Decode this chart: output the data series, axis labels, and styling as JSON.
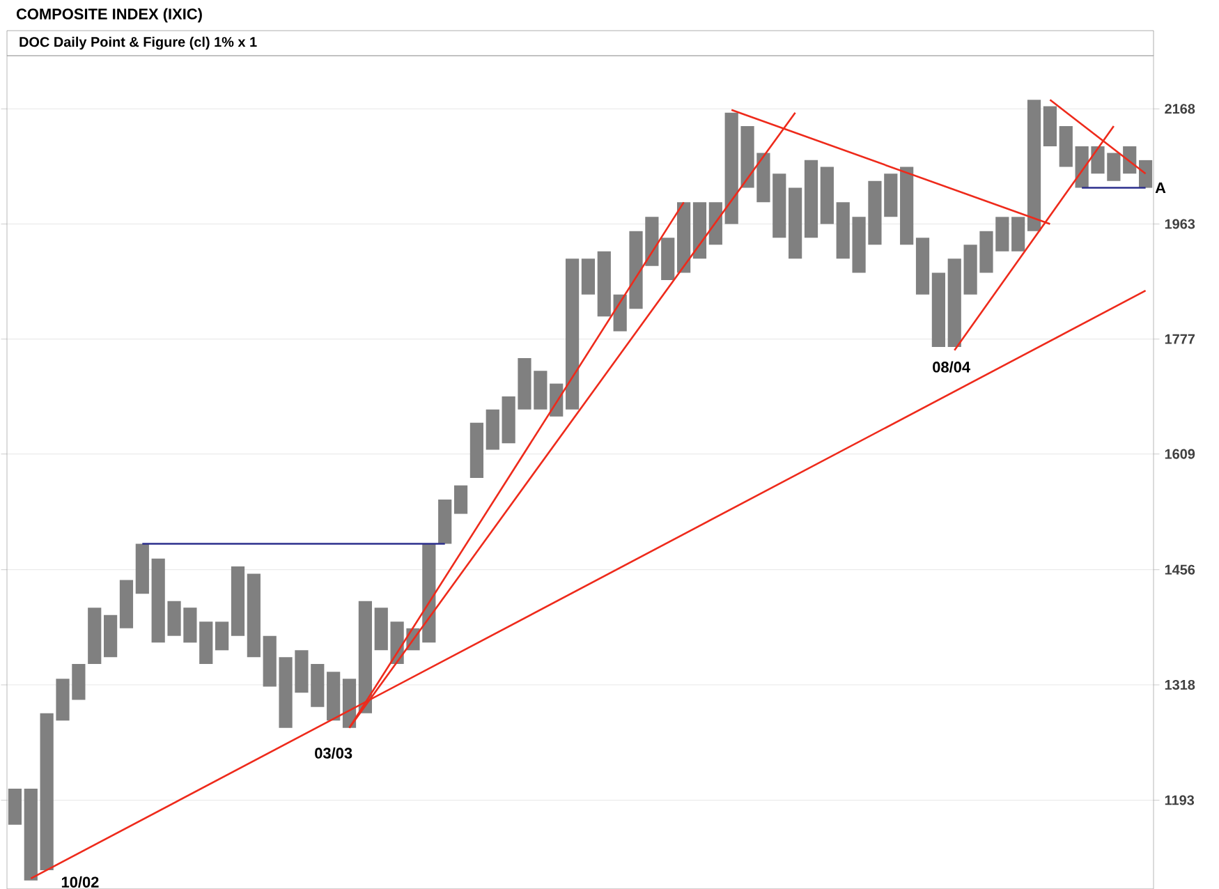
{
  "chart_data": {
    "type": "bar",
    "title": "COMPOSITE INDEX (IXIC)",
    "subtitle": "DOC Daily Point & Figure (cl) 1% x 1",
    "categories": [
      null,
      null,
      null,
      null,
      null,
      null,
      null,
      null,
      null,
      null,
      null,
      null,
      null,
      null,
      null,
      null,
      null,
      null,
      null,
      null,
      null,
      null,
      null,
      null,
      null,
      null,
      null,
      null,
      null,
      null,
      null,
      null,
      null,
      null,
      null,
      null,
      null,
      null,
      null,
      null,
      null,
      null,
      null,
      null,
      null,
      null,
      null,
      null,
      null,
      null,
      null,
      null,
      null,
      null,
      null,
      null,
      null,
      null,
      null,
      null,
      null,
      null,
      null,
      null,
      null,
      null,
      null,
      null,
      null,
      null,
      null,
      null
    ],
    "base": [
      1168,
      1113,
      1123,
      1278,
      1301,
      1342,
      1350,
      1384,
      1426,
      1367,
      1375,
      1367,
      1342,
      1358,
      1375,
      1350,
      1316,
      1270,
      1309,
      1293,
      1278,
      1270,
      1286,
      1358,
      1342,
      1358,
      1367,
      1489,
      1528,
      1576,
      1615,
      1624,
      1672,
      1672,
      1662,
      1672,
      1847,
      1812,
      1789,
      1824,
      1893,
      1870,
      1882,
      1905,
      1928,
      1963,
      2025,
      2000,
      1940,
      1905,
      1940,
      1963,
      1905,
      1882,
      1928,
      1975,
      1928,
      1847,
      1765,
      1765,
      1847,
      1882,
      1917,
      1917,
      1951,
      2099,
      2062,
      2025,
      2050,
      2037,
      2050,
      2025
    ],
    "values": [
      37,
      92,
      163,
      47,
      41,
      67,
      50,
      59,
      63,
      103,
      42,
      42,
      50,
      34,
      85,
      101,
      59,
      80,
      49,
      49,
      55,
      55,
      131,
      51,
      50,
      26,
      122,
      58,
      38,
      77,
      57,
      67,
      76,
      57,
      48,
      233,
      58,
      105,
      58,
      127,
      82,
      70,
      118,
      95,
      72,
      198,
      111,
      87,
      110,
      120,
      134,
      99,
      95,
      93,
      109,
      75,
      134,
      93,
      117,
      140,
      81,
      69,
      58,
      58,
      234,
      74,
      74,
      74,
      49,
      50,
      49,
      49
    ],
    "color": "#808080",
    "series": [
      {
        "type": "line",
        "color": "#ee2a1b",
        "values": [
          null,
          1115,
          null,
          null,
          null,
          null,
          null,
          null,
          null,
          null,
          null,
          null,
          null,
          null,
          null,
          null,
          null,
          null,
          null,
          null,
          null,
          null,
          null,
          null,
          null,
          null,
          null,
          null,
          null,
          null,
          null,
          null,
          null,
          null,
          null,
          null,
          null,
          null,
          null,
          null,
          null,
          null,
          null,
          null,
          null,
          null,
          null,
          null,
          null,
          null,
          null,
          null,
          null,
          null,
          null,
          null,
          null,
          null,
          null,
          null,
          null,
          null,
          null,
          null,
          null,
          null,
          null,
          null,
          null,
          null,
          null,
          1853
        ]
      },
      {
        "type": "line",
        "color": "#ee2a1b",
        "values": [
          null,
          null,
          null,
          null,
          null,
          null,
          null,
          null,
          null,
          null,
          null,
          null,
          null,
          null,
          null,
          null,
          null,
          null,
          null,
          null,
          null,
          1270,
          null,
          null,
          null,
          null,
          null,
          null,
          null,
          null,
          null,
          null,
          null,
          null,
          null,
          null,
          null,
          null,
          null,
          null,
          null,
          null,
          null,
          null,
          null,
          null,
          null,
          null,
          null,
          2161,
          null,
          null,
          null,
          null,
          null,
          null,
          null,
          null,
          null,
          null,
          null,
          null,
          null,
          null,
          null,
          null,
          null,
          null,
          null,
          null,
          null,
          null
        ]
      },
      {
        "type": "line",
        "color": "#ee2a1b",
        "values": [
          null,
          null,
          null,
          null,
          null,
          null,
          null,
          null,
          null,
          null,
          null,
          null,
          null,
          null,
          null,
          null,
          null,
          null,
          null,
          null,
          null,
          1270,
          null,
          null,
          null,
          null,
          null,
          null,
          null,
          null,
          null,
          null,
          null,
          null,
          null,
          null,
          null,
          null,
          null,
          null,
          null,
          null,
          2000,
          null,
          null,
          null,
          null,
          null,
          null,
          null,
          null,
          null,
          null,
          null,
          null,
          null,
          null,
          null,
          null,
          null,
          null,
          null,
          null,
          null,
          null,
          null,
          null,
          null,
          null,
          null,
          null,
          null
        ]
      },
      {
        "type": "line",
        "color": "#ee2a1b",
        "values": [
          null,
          null,
          null,
          null,
          null,
          null,
          null,
          null,
          null,
          null,
          null,
          null,
          null,
          null,
          null,
          null,
          null,
          null,
          null,
          null,
          null,
          null,
          null,
          null,
          null,
          null,
          null,
          null,
          null,
          null,
          null,
          null,
          null,
          null,
          null,
          null,
          null,
          null,
          null,
          null,
          null,
          null,
          null,
          null,
          null,
          2166,
          null,
          null,
          null,
          null,
          null,
          null,
          null,
          null,
          null,
          null,
          null,
          null,
          null,
          null,
          null,
          null,
          null,
          null,
          null,
          1963,
          null,
          null,
          null,
          null,
          null,
          null
        ]
      },
      {
        "type": "line",
        "color": "#ee2a1b",
        "values": [
          null,
          null,
          null,
          null,
          null,
          null,
          null,
          null,
          null,
          null,
          null,
          null,
          null,
          null,
          null,
          null,
          null,
          null,
          null,
          null,
          null,
          null,
          null,
          null,
          null,
          null,
          null,
          null,
          null,
          null,
          null,
          null,
          null,
          null,
          null,
          null,
          null,
          null,
          null,
          null,
          null,
          null,
          null,
          null,
          null,
          null,
          null,
          null,
          null,
          null,
          null,
          null,
          null,
          null,
          null,
          null,
          null,
          null,
          null,
          1760,
          null,
          null,
          null,
          null,
          null,
          null,
          null,
          null,
          null,
          2136,
          null,
          null
        ]
      },
      {
        "type": "line",
        "color": "#ee2a1b",
        "values": [
          null,
          null,
          null,
          null,
          null,
          null,
          null,
          null,
          null,
          null,
          null,
          null,
          null,
          null,
          null,
          null,
          null,
          null,
          null,
          null,
          null,
          null,
          null,
          null,
          null,
          null,
          null,
          null,
          null,
          null,
          null,
          null,
          null,
          null,
          null,
          null,
          null,
          null,
          null,
          null,
          null,
          null,
          null,
          null,
          null,
          null,
          null,
          null,
          null,
          null,
          null,
          null,
          null,
          null,
          null,
          null,
          null,
          null,
          null,
          null,
          null,
          null,
          null,
          null,
          null,
          2185,
          null,
          null,
          null,
          null,
          null,
          2050
        ]
      },
      {
        "type": "line",
        "color": "#2b2e8c",
        "values": [
          null,
          null,
          null,
          null,
          null,
          null,
          null,
          null,
          1489,
          null,
          null,
          null,
          null,
          null,
          null,
          null,
          null,
          null,
          null,
          null,
          null,
          null,
          null,
          null,
          null,
          null,
          null,
          1489,
          null,
          null,
          null,
          null,
          null,
          null,
          null,
          null,
          null,
          null,
          null,
          null,
          null,
          null,
          null,
          null,
          null,
          null,
          null,
          null,
          null,
          null,
          null,
          null,
          null,
          null,
          null,
          null,
          null,
          null,
          null,
          null,
          null,
          null,
          null,
          null,
          null,
          null,
          null,
          null,
          null,
          null,
          null,
          null
        ]
      },
      {
        "type": "line",
        "color": "#2b2e8c",
        "values": [
          null,
          null,
          null,
          null,
          null,
          null,
          null,
          null,
          null,
          null,
          null,
          null,
          null,
          null,
          null,
          null,
          null,
          null,
          null,
          null,
          null,
          null,
          null,
          null,
          null,
          null,
          null,
          null,
          null,
          null,
          null,
          null,
          null,
          null,
          null,
          null,
          null,
          null,
          null,
          null,
          null,
          null,
          null,
          null,
          null,
          null,
          null,
          null,
          null,
          null,
          null,
          null,
          null,
          null,
          null,
          null,
          null,
          null,
          null,
          null,
          null,
          null,
          null,
          null,
          null,
          null,
          null,
          2025,
          null,
          null,
          null,
          2025
        ]
      }
    ],
    "log": "y",
    "ylim": [
      1105,
      2270
    ],
    "yticks": [
      1193,
      1318,
      1456,
      1609,
      1777,
      1963,
      2168
    ],
    "grid": true,
    "annotations": [
      "10/02",
      "03/03",
      "08/04",
      "A"
    ]
  }
}
